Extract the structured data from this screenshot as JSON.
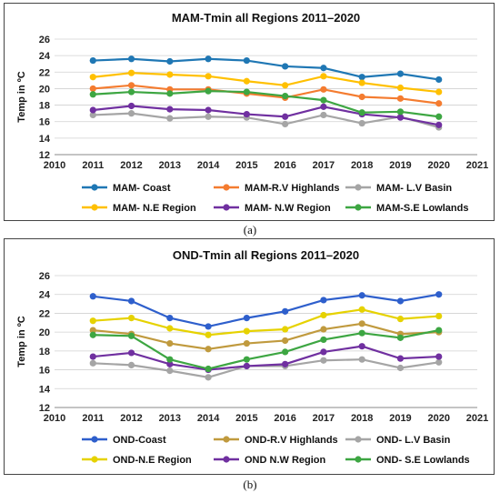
{
  "chart_data": [
    {
      "type": "line",
      "title": "MAM-Tmin all Regions 2011–2020",
      "ylabel": "Temp in ºC",
      "xlabel": "",
      "caption": "(a)",
      "xlim": [
        2010,
        2021
      ],
      "ylim": [
        12,
        26
      ],
      "xticks": [
        2010,
        2011,
        2012,
        2013,
        2014,
        2015,
        2016,
        2017,
        2018,
        2019,
        2020,
        2021
      ],
      "yticks": [
        12,
        14,
        16,
        18,
        20,
        22,
        24,
        26
      ],
      "grid": true,
      "legend": "bottom",
      "x": [
        2011,
        2012,
        2013,
        2014,
        2015,
        2016,
        2017,
        2018,
        2019,
        2020
      ],
      "series": [
        {
          "name": "MAM- Coast",
          "color": "#1f77b4",
          "values": [
            23.4,
            23.6,
            23.3,
            23.6,
            23.4,
            22.7,
            22.5,
            21.4,
            21.8,
            21.1
          ]
        },
        {
          "name": "MAM-R.V Highlands",
          "color": "#f47c30",
          "values": [
            20.0,
            20.4,
            19.9,
            19.9,
            19.4,
            18.9,
            19.9,
            19.0,
            18.8,
            18.2
          ]
        },
        {
          "name": "MAM- L.V Basin",
          "color": "#a5a5a5",
          "values": [
            16.8,
            17.0,
            16.4,
            16.6,
            16.5,
            15.7,
            16.8,
            15.8,
            16.6,
            15.3
          ]
        },
        {
          "name": "MAM- N.E Region",
          "color": "#ffc000",
          "values": [
            21.4,
            21.9,
            21.7,
            21.5,
            20.9,
            20.4,
            21.5,
            20.7,
            20.1,
            19.6
          ]
        },
        {
          "name": "MAM- N.W Region",
          "color": "#7030a0",
          "values": [
            17.4,
            17.9,
            17.5,
            17.4,
            16.9,
            16.6,
            17.8,
            16.9,
            16.5,
            15.6
          ]
        },
        {
          "name": "MAM-S.E Lowlands",
          "color": "#3da642",
          "values": [
            19.3,
            19.6,
            19.4,
            19.7,
            19.6,
            19.1,
            18.6,
            17.1,
            17.2,
            16.6
          ]
        }
      ]
    },
    {
      "type": "line",
      "title": "OND-Tmin all Regions 2011–2020",
      "ylabel": "Temp in ºC",
      "xlabel": "",
      "caption": "(b)",
      "xlim": [
        2010,
        2021
      ],
      "ylim": [
        12,
        26
      ],
      "xticks": [
        2010,
        2011,
        2012,
        2013,
        2014,
        2015,
        2016,
        2017,
        2018,
        2019,
        2020,
        2021
      ],
      "yticks": [
        12,
        14,
        16,
        18,
        20,
        22,
        24,
        26
      ],
      "grid": true,
      "legend": "bottom",
      "x": [
        2011,
        2012,
        2013,
        2014,
        2015,
        2016,
        2017,
        2018,
        2019,
        2020
      ],
      "series": [
        {
          "name": "OND-Coast",
          "color": "#2e5fcc",
          "values": [
            23.8,
            23.3,
            21.5,
            20.6,
            21.5,
            22.2,
            23.4,
            23.9,
            23.3,
            24.0
          ]
        },
        {
          "name": "OND-R.V Highlands",
          "color": "#c09a3e",
          "values": [
            20.2,
            19.8,
            18.8,
            18.2,
            18.8,
            19.1,
            20.3,
            20.9,
            19.8,
            20.0
          ]
        },
        {
          "name": "OND- L.V Basin",
          "color": "#a5a5a5",
          "values": [
            16.7,
            16.5,
            15.9,
            15.2,
            16.4,
            16.4,
            17.0,
            17.1,
            16.2,
            16.8
          ]
        },
        {
          "name": "OND-N.E Region",
          "color": "#e6d200",
          "values": [
            21.2,
            21.5,
            20.4,
            19.7,
            20.1,
            20.3,
            21.8,
            22.4,
            21.4,
            21.7
          ]
        },
        {
          "name": "OND N.W Region",
          "color": "#7030a0",
          "values": [
            17.4,
            17.8,
            16.6,
            16.0,
            16.4,
            16.6,
            17.9,
            18.5,
            17.2,
            17.4
          ]
        },
        {
          "name": "OND- S.E Lowlands",
          "color": "#3da642",
          "values": [
            19.7,
            19.6,
            17.1,
            16.1,
            17.1,
            17.9,
            19.2,
            19.9,
            19.4,
            20.2
          ]
        }
      ]
    }
  ]
}
